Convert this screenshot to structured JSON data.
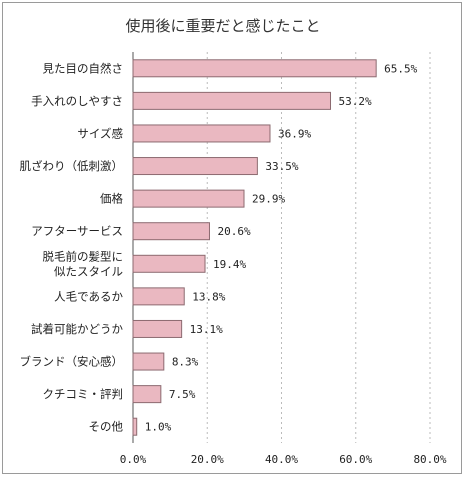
{
  "chart_data": {
    "type": "bar",
    "orientation": "horizontal",
    "title": "使用後に重要だと感じたこと",
    "categories": [
      "見た目の自然さ",
      "手入れのしやすさ",
      "サイズ感",
      "肌ざわり（低刺激）",
      "価格",
      "アフターサービス",
      "脱毛前の髪型に\n似たスタイル",
      "人毛であるか",
      "試着可能かどうか",
      "ブランド（安心感）",
      "クチコミ・評判",
      "その他"
    ],
    "values": [
      65.5,
      53.2,
      36.9,
      33.5,
      29.9,
      20.6,
      19.4,
      13.8,
      13.1,
      8.3,
      7.5,
      1.0
    ],
    "value_labels": [
      "65.5%",
      "53.2%",
      "36.9%",
      "33.5%",
      "29.9%",
      "20.6%",
      "19.4%",
      "13.8%",
      "13.1%",
      "8.3%",
      "7.5%",
      "1.0%"
    ],
    "xticks": [
      "0.0%",
      "20.0%",
      "40.0%",
      "60.0%",
      "80.0%"
    ],
    "xlim": [
      0,
      80
    ],
    "xlabel": "",
    "ylabel": "",
    "grid": "vertical dotted",
    "colors": {
      "bar_fill": "#eab8c1",
      "bar_stroke": "#8c6a70",
      "grid": "#bbbbbb",
      "axis": "#555555"
    }
  }
}
